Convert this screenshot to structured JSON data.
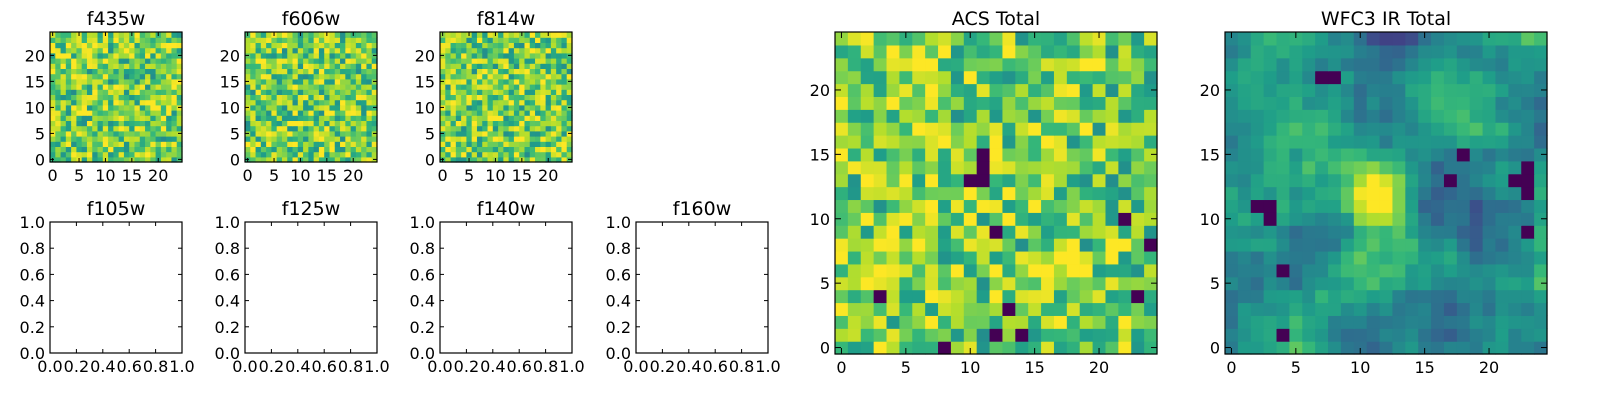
{
  "chart_data": [
    {
      "type": "heatmap",
      "title": "f435w",
      "xticks": [
        "0",
        "5",
        "10",
        "15",
        "20"
      ],
      "yticks": [
        "0",
        "5",
        "10",
        "15",
        "20"
      ],
      "xlim": [
        -0.5,
        24.5
      ],
      "ylim": [
        -0.5,
        24.5
      ],
      "grid_size": 25,
      "seed": 11,
      "colormap": "viridis",
      "note_values": "pixel values not labeled; field shown with random-like noise"
    },
    {
      "type": "heatmap",
      "title": "f606w",
      "xticks": [
        "0",
        "5",
        "10",
        "15",
        "20"
      ],
      "yticks": [
        "0",
        "5",
        "10",
        "15",
        "20"
      ],
      "xlim": [
        -0.5,
        24.5
      ],
      "ylim": [
        -0.5,
        24.5
      ],
      "grid_size": 25,
      "seed": 23,
      "colormap": "viridis"
    },
    {
      "type": "heatmap",
      "title": "f814w",
      "xticks": [
        "0",
        "5",
        "10",
        "15",
        "20"
      ],
      "yticks": [
        "0",
        "5",
        "10",
        "15",
        "20"
      ],
      "xlim": [
        -0.5,
        24.5
      ],
      "ylim": [
        -0.5,
        24.5
      ],
      "grid_size": 25,
      "seed": 37,
      "colormap": "viridis"
    },
    {
      "type": "empty",
      "title": "f105w",
      "xticks": [
        "0.0",
        "0.2",
        "0.4",
        "0.6",
        "0.8",
        "1.0"
      ],
      "yticks": [
        "0.0",
        "0.2",
        "0.4",
        "0.6",
        "0.8",
        "1.0"
      ],
      "xlim": [
        0,
        1
      ],
      "ylim": [
        0,
        1
      ]
    },
    {
      "type": "empty",
      "title": "f125w",
      "xticks": [
        "0.0",
        "0.2",
        "0.4",
        "0.6",
        "0.8",
        "1.0"
      ],
      "yticks": [
        "0.0",
        "0.2",
        "0.4",
        "0.6",
        "0.8",
        "1.0"
      ],
      "xlim": [
        0,
        1
      ],
      "ylim": [
        0,
        1
      ]
    },
    {
      "type": "empty",
      "title": "f140w",
      "xticks": [
        "0.0",
        "0.2",
        "0.4",
        "0.6",
        "0.8",
        "1.0"
      ],
      "yticks": [
        "0.0",
        "0.2",
        "0.4",
        "0.6",
        "0.8",
        "1.0"
      ],
      "xlim": [
        0,
        1
      ],
      "ylim": [
        0,
        1
      ]
    },
    {
      "type": "empty",
      "title": "f160w",
      "xticks": [
        "0.0",
        "0.2",
        "0.4",
        "0.6",
        "0.8",
        "1.0"
      ],
      "yticks": [
        "0.0",
        "0.2",
        "0.4",
        "0.6",
        "0.8",
        "1.0"
      ],
      "xlim": [
        0,
        1
      ],
      "ylim": [
        0,
        1
      ]
    },
    {
      "type": "heatmap",
      "title": "ACS Total",
      "xticks": [
        "0",
        "5",
        "10",
        "15",
        "20"
      ],
      "yticks": [
        "0",
        "5",
        "10",
        "15",
        "20"
      ],
      "xlim": [
        -0.5,
        24.5
      ],
      "ylim": [
        -0.5,
        24.5
      ],
      "grid_size": 25,
      "seed": 53,
      "colormap": "viridis",
      "dark_pixels": [
        [
          8,
          0
        ],
        [
          3,
          4
        ],
        [
          14,
          1
        ],
        [
          12,
          1
        ],
        [
          23,
          4
        ],
        [
          22,
          10
        ],
        [
          24,
          8
        ],
        [
          11,
          13
        ],
        [
          11,
          14
        ],
        [
          11,
          15
        ],
        [
          10,
          13
        ],
        [
          12,
          9
        ],
        [
          13,
          3
        ]
      ],
      "bright_pixels": [
        [
          3,
          0
        ],
        [
          7,
          2
        ],
        [
          12,
          4
        ],
        [
          21,
          7
        ],
        [
          21,
          8
        ],
        [
          7,
          11
        ],
        [
          10,
          12
        ],
        [
          10,
          21
        ],
        [
          13,
          23
        ],
        [
          19,
          17
        ],
        [
          3,
          6
        ],
        [
          15,
          6
        ],
        [
          6,
          22
        ]
      ]
    },
    {
      "type": "heatmap",
      "title": "WFC3 IR Total",
      "xticks": [
        "0",
        "5",
        "10",
        "15",
        "20"
      ],
      "yticks": [
        "0",
        "5",
        "10",
        "15",
        "20"
      ],
      "xlim": [
        -0.5,
        24.5
      ],
      "ylim": [
        -0.5,
        24.5
      ],
      "grid_size": 25,
      "seed": 71,
      "colormap": "viridis",
      "smooth": true,
      "bright_blob_center": [
        11.5,
        11.5
      ],
      "dark_pixels": [
        [
          7,
          21
        ],
        [
          8,
          21
        ],
        [
          4,
          6
        ],
        [
          4,
          1
        ],
        [
          23,
          9
        ],
        [
          23,
          12
        ],
        [
          23,
          13
        ],
        [
          23,
          14
        ],
        [
          22,
          13
        ],
        [
          18,
          15
        ],
        [
          17,
          13
        ],
        [
          2,
          11
        ],
        [
          3,
          11
        ],
        [
          3,
          10
        ]
      ]
    }
  ]
}
